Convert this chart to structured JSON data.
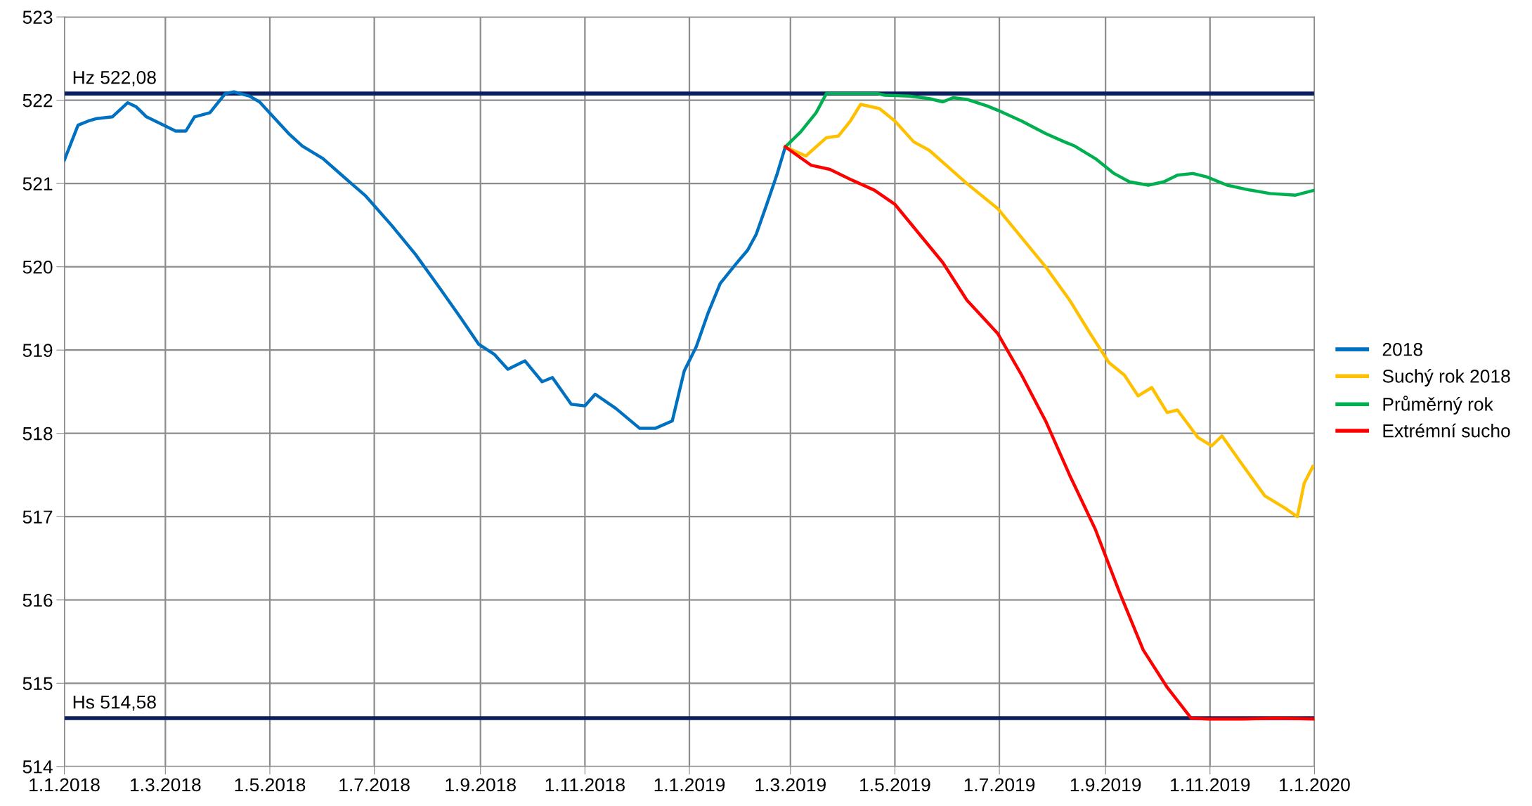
{
  "chart_data": {
    "type": "line",
    "ylim": [
      514,
      523
    ],
    "yticks": [
      514,
      515,
      516,
      517,
      518,
      519,
      520,
      521,
      522,
      523
    ],
    "xlim": [
      "2018-01-01",
      "2020-01-01"
    ],
    "xticks": [
      {
        "value": "2018-01-01",
        "label": "1.1.2018"
      },
      {
        "value": "2018-03-01",
        "label": "1.3.2018"
      },
      {
        "value": "2018-05-01",
        "label": "1.5.2018"
      },
      {
        "value": "2018-07-01",
        "label": "1.7.2018"
      },
      {
        "value": "2018-09-01",
        "label": "1.9.2018"
      },
      {
        "value": "2018-11-01",
        "label": "1.11.2018"
      },
      {
        "value": "2019-01-01",
        "label": "1.1.2019"
      },
      {
        "value": "2019-03-01",
        "label": "1.3.2019"
      },
      {
        "value": "2019-05-01",
        "label": "1.5.2019"
      },
      {
        "value": "2019-07-01",
        "label": "1.7.2019"
      },
      {
        "value": "2019-09-01",
        "label": "1.9.2019"
      },
      {
        "value": "2019-11-01",
        "label": "1.11.2019"
      },
      {
        "value": "2020-01-01",
        "label": "1.1.2020"
      }
    ],
    "grid": true,
    "legend": "right",
    "marker": "none",
    "line_style": "solid",
    "ref_lines": [
      {
        "axis": "y",
        "value": 522.08,
        "label": "Hz 522,08",
        "color": "#0b1f5e"
      },
      {
        "axis": "y",
        "value": 514.58,
        "label": "Hs 514,58",
        "color": "#0b1f5e"
      }
    ],
    "series": [
      {
        "name": "2018",
        "color": "#0070c0",
        "x": [
          "2018-01-01",
          "2018-01-09",
          "2018-01-15",
          "2018-01-20",
          "2018-01-29",
          "2018-02-07",
          "2018-02-12",
          "2018-02-18",
          "2018-02-26",
          "2018-03-07",
          "2018-03-13",
          "2018-03-18",
          "2018-03-27",
          "2018-04-05",
          "2018-04-10",
          "2018-04-19",
          "2018-04-25",
          "2018-05-03",
          "2018-05-12",
          "2018-05-20",
          "2018-06-01",
          "2018-06-12",
          "2018-06-26",
          "2018-07-11",
          "2018-07-25",
          "2018-08-08",
          "2018-08-20",
          "2018-08-31",
          "2018-09-09",
          "2018-09-17",
          "2018-09-27",
          "2018-10-07",
          "2018-10-13",
          "2018-10-24",
          "2018-11-01",
          "2018-11-07",
          "2018-11-19",
          "2018-12-03",
          "2018-12-12",
          "2018-12-22",
          "2018-12-29",
          "2019-01-05",
          "2019-01-12",
          "2019-01-19",
          "2019-01-28",
          "2019-02-04",
          "2019-02-09",
          "2019-02-15",
          "2019-02-21",
          "2019-02-26"
        ],
        "values": [
          521.28,
          521.7,
          521.75,
          521.78,
          521.8,
          521.97,
          521.92,
          521.8,
          521.72,
          521.63,
          521.63,
          521.8,
          521.85,
          522.08,
          522.1,
          522.05,
          521.98,
          521.8,
          521.6,
          521.45,
          521.3,
          521.1,
          520.85,
          520.5,
          520.15,
          519.75,
          519.4,
          519.07,
          518.95,
          518.77,
          518.87,
          518.62,
          518.67,
          518.35,
          518.33,
          518.47,
          518.3,
          518.06,
          518.06,
          518.15,
          518.75,
          519.04,
          519.45,
          519.8,
          520.03,
          520.2,
          520.39,
          520.74,
          521.1,
          521.44
        ]
      },
      {
        "name": "Suchý rok 2018",
        "color": "#ffc000",
        "x": [
          "2019-02-26",
          "2019-03-10",
          "2019-03-22",
          "2019-03-29",
          "2019-04-05",
          "2019-04-11",
          "2019-04-22",
          "2019-05-01",
          "2019-05-12",
          "2019-05-21",
          "2019-06-01",
          "2019-06-12",
          "2019-06-30",
          "2019-07-14",
          "2019-07-28",
          "2019-08-11",
          "2019-08-23",
          "2019-09-03",
          "2019-09-12",
          "2019-09-20",
          "2019-09-28",
          "2019-10-07",
          "2019-10-13",
          "2019-10-25",
          "2019-11-02",
          "2019-11-08",
          "2019-11-19",
          "2019-12-03",
          "2019-12-15",
          "2019-12-22",
          "2019-12-26",
          "2019-12-31"
        ],
        "values": [
          521.44,
          521.33,
          521.55,
          521.57,
          521.75,
          521.95,
          521.9,
          521.75,
          521.5,
          521.4,
          521.2,
          521.0,
          520.7,
          520.35,
          520.0,
          519.6,
          519.2,
          518.85,
          518.7,
          518.45,
          518.55,
          518.25,
          518.28,
          517.95,
          517.85,
          517.97,
          517.65,
          517.25,
          517.1,
          517.0,
          517.4,
          517.6
        ]
      },
      {
        "name": "Průměrný rok",
        "color": "#00b050",
        "x": [
          "2019-02-26",
          "2019-03-07",
          "2019-03-16",
          "2019-03-22",
          "2019-04-21",
          "2019-04-25",
          "2019-05-09",
          "2019-05-21",
          "2019-05-29",
          "2019-06-04",
          "2019-06-12",
          "2019-06-24",
          "2019-06-30",
          "2019-07-14",
          "2019-07-28",
          "2019-08-08",
          "2019-08-14",
          "2019-08-26",
          "2019-09-06",
          "2019-09-15",
          "2019-09-26",
          "2019-10-05",
          "2019-10-13",
          "2019-10-22",
          "2019-10-30",
          "2019-11-11",
          "2019-11-22",
          "2019-12-06",
          "2019-12-21",
          "2020-01-01"
        ],
        "values": [
          521.44,
          521.62,
          521.85,
          522.08,
          522.08,
          522.06,
          522.05,
          522.02,
          521.98,
          522.03,
          522.01,
          521.93,
          521.88,
          521.75,
          521.6,
          521.5,
          521.45,
          521.3,
          521.12,
          521.02,
          520.98,
          521.02,
          521.1,
          521.12,
          521.08,
          520.98,
          520.93,
          520.88,
          520.86,
          520.92
        ]
      },
      {
        "name": "Extrémní sucho",
        "color": "#ff0000",
        "x": [
          "2019-02-26",
          "2019-03-13",
          "2019-03-24",
          "2019-04-05",
          "2019-04-19",
          "2019-05-01",
          "2019-05-15",
          "2019-05-29",
          "2019-06-12",
          "2019-06-30",
          "2019-07-14",
          "2019-07-28",
          "2019-08-11",
          "2019-08-26",
          "2019-09-09",
          "2019-09-23",
          "2019-10-07",
          "2019-10-21",
          "2019-10-31",
          "2019-11-20",
          "2019-12-10",
          "2020-01-01"
        ],
        "values": [
          521.44,
          521.22,
          521.17,
          521.05,
          520.92,
          520.75,
          520.4,
          520.05,
          519.6,
          519.2,
          518.7,
          518.15,
          517.5,
          516.85,
          516.1,
          515.4,
          514.95,
          514.58,
          514.57,
          514.57,
          514.58,
          514.57
        ]
      }
    ]
  }
}
